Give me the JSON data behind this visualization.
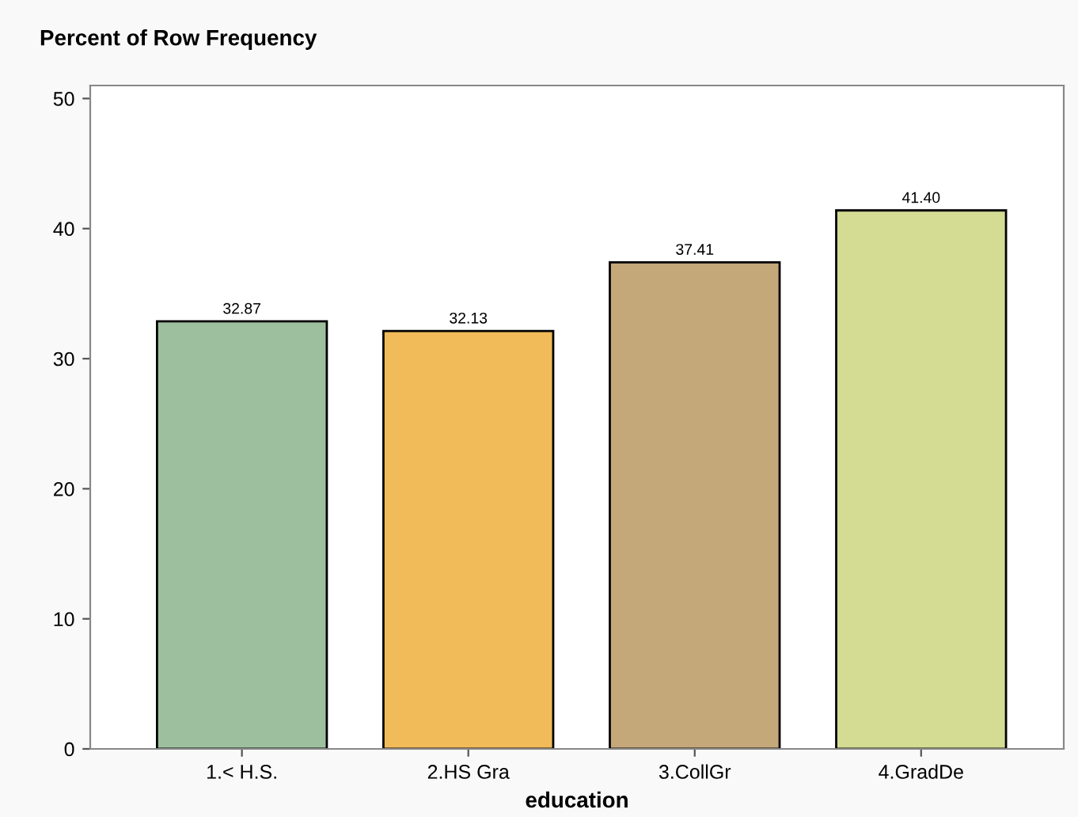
{
  "chart_data": {
    "type": "bar",
    "title": "Percent of Row Frequency",
    "xlabel": "education",
    "categories": [
      "1.< H.S.",
      "2.HS Gra",
      "3.CollGr",
      "4.GradDe"
    ],
    "values": [
      32.87,
      32.13,
      37.41,
      41.4
    ],
    "colors": [
      "#9dbf9e",
      "#f2bb5a",
      "#c4a87a",
      "#d4dc93"
    ],
    "value_labels": [
      "32.87",
      "32.13",
      "37.41",
      "41.40"
    ],
    "ylim": [
      0,
      51
    ],
    "yticks": [
      0,
      10,
      20,
      30,
      40,
      50
    ],
    "grid": false
  }
}
